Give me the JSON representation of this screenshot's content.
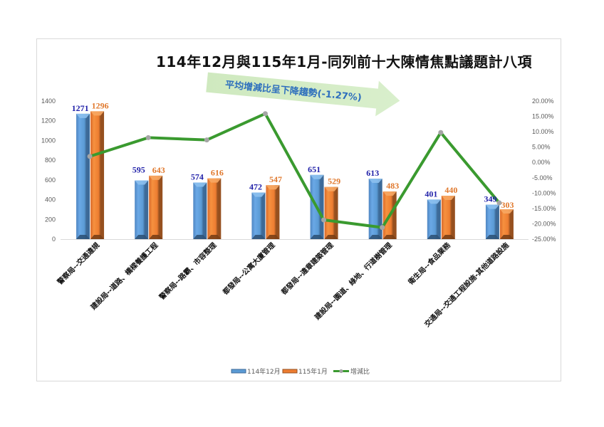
{
  "chart_data": {
    "type": "bar",
    "title": "114年12月與115年1月-同列前十大陳情焦點議題計八項",
    "annotation": "平均增減比呈下降趨勢(-1.27%)",
    "categories": [
      "警察局--交通違規",
      "建設局--道路、橋樑養護工程",
      "警察局--路霸、市容整理",
      "都發局--公寓大廈管理",
      "都發局--違章建築管理",
      "建設局--園道、綠地、行道樹管理",
      "衛生局--食品業務",
      "交通局--交通工程設施-其他道路設施"
    ],
    "series": [
      {
        "name": "114年12月",
        "type": "bar",
        "axis": "left",
        "color": "#5b9bd5",
        "values": [
          1271,
          595,
          574,
          472,
          651,
          613,
          401,
          349
        ]
      },
      {
        "name": "115年1月",
        "type": "bar",
        "axis": "left",
        "color": "#ed7d31",
        "values": [
          1296,
          643,
          616,
          547,
          529,
          483,
          440,
          303
        ]
      },
      {
        "name": "增減比",
        "type": "line",
        "axis": "right",
        "color": "#3a9a2f",
        "values": [
          1.97,
          8.07,
          7.32,
          15.89,
          -18.74,
          -21.21,
          9.73,
          -13.18
        ]
      }
    ],
    "xlabel": "",
    "ylabel": "",
    "ylim": [
      0,
      1400
    ],
    "yticks": [
      "0",
      "200",
      "400",
      "600",
      "800",
      "1000",
      "1200",
      "1400"
    ],
    "y2lim": [
      -25,
      20
    ],
    "y2ticks": [
      "-25.00%",
      "-20.00%",
      "-15.00%",
      "-10.00%",
      "-5.00%",
      "0.00%",
      "5.00%",
      "10.00%",
      "15.00%",
      "20.00%"
    ],
    "grid": false,
    "legend_position": "bottom"
  },
  "legend": {
    "items": [
      "114年12月",
      "115年1月",
      "增減比"
    ]
  }
}
